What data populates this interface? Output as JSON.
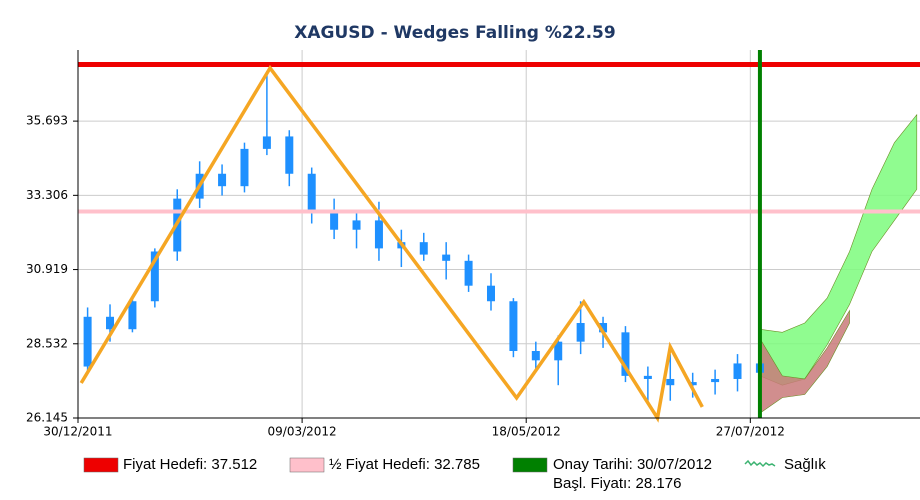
{
  "chart_data": {
    "type": "candlestick",
    "title": "XAGUSD - Wedges Falling %22.59",
    "xlim": [
      "2011-12-30",
      "2012-09-18"
    ],
    "xticks": [
      {
        "value": "2011-12-30",
        "label": "30/12/2011"
      },
      {
        "value": "2012-03-09",
        "label": "09/03/2012"
      },
      {
        "value": "2012-05-18",
        "label": "18/05/2012"
      },
      {
        "value": "2012-07-27",
        "label": "27/07/2012"
      }
    ],
    "ylim": [
      26.145,
      37.98
    ],
    "yticks": [
      26.145,
      28.532,
      30.919,
      33.306,
      35.693
    ],
    "grid": true,
    "candle_color": "#1e90ff",
    "candles": {
      "dates": [
        "2012-01-02",
        "2012-01-09",
        "2012-01-16",
        "2012-01-23",
        "2012-01-30",
        "2012-02-06",
        "2012-02-13",
        "2012-02-20",
        "2012-02-27",
        "2012-03-05",
        "2012-03-12",
        "2012-03-19",
        "2012-03-26",
        "2012-04-02",
        "2012-04-09",
        "2012-04-16",
        "2012-04-23",
        "2012-04-30",
        "2012-05-07",
        "2012-05-14",
        "2012-05-21",
        "2012-05-28",
        "2012-06-04",
        "2012-06-11",
        "2012-06-18",
        "2012-06-25",
        "2012-07-02",
        "2012-07-09",
        "2012-07-16",
        "2012-07-23",
        "2012-07-30"
      ],
      "open": [
        27.8,
        29.4,
        29.0,
        29.9,
        31.5,
        33.2,
        34.0,
        33.6,
        34.8,
        35.2,
        34.0,
        32.8,
        32.2,
        32.5,
        31.6,
        31.8,
        31.4,
        31.2,
        30.4,
        29.9,
        28.3,
        28.0,
        28.6,
        29.2,
        28.9,
        27.5,
        27.4,
        27.2,
        27.3,
        27.4,
        27.9
      ],
      "high": [
        29.7,
        29.8,
        30.0,
        31.6,
        33.5,
        34.4,
        34.3,
        35.0,
        37.3,
        35.4,
        34.2,
        33.2,
        32.8,
        33.1,
        32.2,
        32.1,
        31.8,
        31.4,
        30.8,
        30.0,
        28.6,
        28.8,
        29.9,
        29.4,
        29.1,
        27.8,
        28.2,
        27.6,
        27.7,
        28.2,
        28.3
      ],
      "low": [
        27.6,
        28.6,
        28.9,
        29.7,
        31.2,
        32.9,
        33.3,
        33.4,
        34.6,
        33.6,
        32.4,
        31.9,
        31.6,
        31.2,
        31.0,
        31.2,
        30.6,
        30.2,
        29.6,
        28.1,
        27.7,
        27.2,
        28.2,
        28.4,
        27.3,
        26.6,
        26.7,
        26.8,
        26.9,
        27.0,
        27.4
      ],
      "close": [
        29.4,
        29.0,
        29.9,
        31.5,
        33.2,
        34.0,
        33.6,
        34.8,
        35.2,
        34.0,
        32.8,
        32.2,
        32.5,
        31.6,
        31.8,
        31.4,
        31.2,
        30.4,
        29.9,
        28.3,
        28.0,
        28.6,
        29.2,
        28.9,
        27.5,
        27.4,
        27.2,
        27.3,
        27.4,
        27.9,
        27.6
      ]
    },
    "pattern": {
      "color": "#f5a623",
      "x": [
        "2011-12-31",
        "2012-02-28",
        "2012-05-15",
        "2012-06-05",
        "2012-06-28",
        "2012-07-02",
        "2012-07-12"
      ],
      "values": [
        27.27,
        37.4,
        26.79,
        29.88,
        26.145,
        28.43,
        26.5
      ]
    },
    "forecast_band": {
      "color": "#7cfc7c",
      "x": [
        "2012-07-30",
        "2012-08-06",
        "2012-08-13",
        "2012-08-20",
        "2012-08-27",
        "2012-09-03",
        "2012-09-10",
        "2012-09-17"
      ],
      "upper": [
        29.0,
        28.9,
        29.2,
        30.0,
        31.5,
        33.5,
        35.0,
        35.9
      ],
      "lower": [
        27.5,
        27.2,
        27.4,
        28.5,
        29.8,
        31.5,
        32.5,
        33.5
      ]
    },
    "risk_band": {
      "color": "#c97a7a",
      "x": [
        "2012-07-30",
        "2012-08-06",
        "2012-08-13",
        "2012-08-20",
        "2012-08-27"
      ],
      "upper": [
        28.7,
        27.5,
        27.4,
        28.4,
        29.6
      ],
      "lower": [
        26.3,
        26.8,
        26.9,
        27.8,
        29.2
      ]
    },
    "lines": [
      {
        "name": "Fiyat Hedefi:",
        "value": 37.512,
        "color": "#ee0000"
      },
      {
        "name": "½ Fiyat Hedefi:",
        "value": 32.785,
        "color": "#ffc0cb"
      }
    ],
    "confirmation": {
      "name": "Onay Tarihi:",
      "date": "2012-07-30",
      "date_label": "30/07/2012",
      "color": "#008000",
      "price_name": "Başl. Fiyatı:",
      "price": 28.176
    },
    "health": {
      "name": "Sağlık",
      "color": "#3cb371"
    }
  }
}
